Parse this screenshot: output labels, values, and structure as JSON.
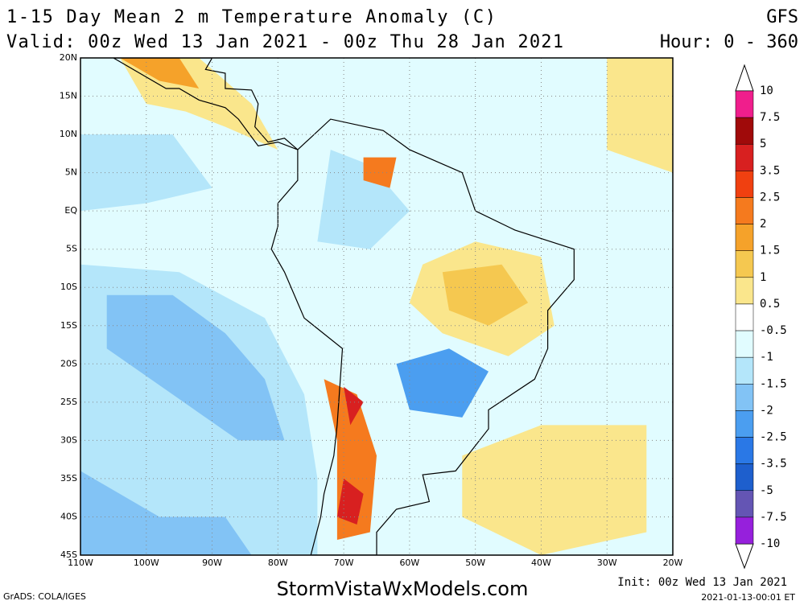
{
  "header": {
    "title": "1-15 Day Mean 2 m Temperature Anomaly (C)",
    "model": "GFS",
    "valid": "Valid: 00z Wed 13 Jan 2021 - 00z Thu 28 Jan 2021",
    "hour": "Hour: 0 - 360"
  },
  "map": {
    "lat_labels": [
      "20N",
      "15N",
      "10N",
      "5N",
      "EQ",
      "5S",
      "10S",
      "15S",
      "20S",
      "25S",
      "30S",
      "35S",
      "40S",
      "45S"
    ],
    "lon_labels": [
      "110W",
      "100W",
      "90W",
      "80W",
      "70W",
      "60W",
      "50W",
      "40W",
      "30W",
      "20W"
    ]
  },
  "colorbar": {
    "levels": [
      10,
      7.5,
      5,
      3.5,
      2.5,
      2,
      1.5,
      1,
      0.5,
      -0.5,
      -1,
      -1.5,
      -2,
      -2.5,
      -3.5,
      -5,
      -7.5,
      -10
    ],
    "colors": [
      "#f01e8c",
      "#a00a0a",
      "#d82020",
      "#f04010",
      "#f57a1e",
      "#f5a22a",
      "#f5c850",
      "#fae68c",
      "#ffffff",
      "#e1fcff",
      "#b4e6fa",
      "#82c3f5",
      "#4b9ef0",
      "#2a78e6",
      "#1e5fcd",
      "#6455b4",
      "#9620dc"
    ],
    "over_color": "#ffffff",
    "under_color": "#ffffff"
  },
  "footer": {
    "grads": "GrADS: COLA/IGES",
    "site": "StormVistaWxModels.com",
    "init": "Init: 00z Wed 13 Jan 2021",
    "stamp": "2021-01-13-00:01 ET"
  }
}
